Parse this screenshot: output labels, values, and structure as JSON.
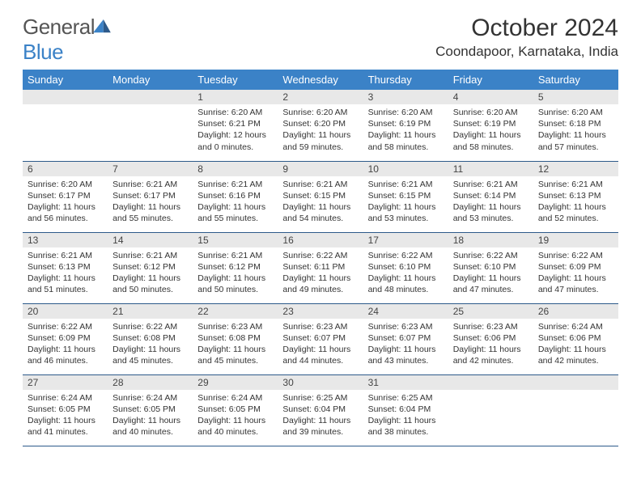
{
  "logo": {
    "text1": "General",
    "text2": "Blue"
  },
  "title": "October 2024",
  "location": "Coondapoor, Karnataka, India",
  "colors": {
    "header_bg": "#3b82c7",
    "header_text": "#ffffff",
    "daynum_bg": "#e8e8e8",
    "border": "#2d5a8a",
    "body_text": "#333333"
  },
  "weekdays": [
    "Sunday",
    "Monday",
    "Tuesday",
    "Wednesday",
    "Thursday",
    "Friday",
    "Saturday"
  ],
  "weeks": [
    [
      null,
      null,
      {
        "n": "1",
        "sr": "6:20 AM",
        "ss": "6:21 PM",
        "dl": "12 hours and 0 minutes."
      },
      {
        "n": "2",
        "sr": "6:20 AM",
        "ss": "6:20 PM",
        "dl": "11 hours and 59 minutes."
      },
      {
        "n": "3",
        "sr": "6:20 AM",
        "ss": "6:19 PM",
        "dl": "11 hours and 58 minutes."
      },
      {
        "n": "4",
        "sr": "6:20 AM",
        "ss": "6:19 PM",
        "dl": "11 hours and 58 minutes."
      },
      {
        "n": "5",
        "sr": "6:20 AM",
        "ss": "6:18 PM",
        "dl": "11 hours and 57 minutes."
      }
    ],
    [
      {
        "n": "6",
        "sr": "6:20 AM",
        "ss": "6:17 PM",
        "dl": "11 hours and 56 minutes."
      },
      {
        "n": "7",
        "sr": "6:21 AM",
        "ss": "6:17 PM",
        "dl": "11 hours and 55 minutes."
      },
      {
        "n": "8",
        "sr": "6:21 AM",
        "ss": "6:16 PM",
        "dl": "11 hours and 55 minutes."
      },
      {
        "n": "9",
        "sr": "6:21 AM",
        "ss": "6:15 PM",
        "dl": "11 hours and 54 minutes."
      },
      {
        "n": "10",
        "sr": "6:21 AM",
        "ss": "6:15 PM",
        "dl": "11 hours and 53 minutes."
      },
      {
        "n": "11",
        "sr": "6:21 AM",
        "ss": "6:14 PM",
        "dl": "11 hours and 53 minutes."
      },
      {
        "n": "12",
        "sr": "6:21 AM",
        "ss": "6:13 PM",
        "dl": "11 hours and 52 minutes."
      }
    ],
    [
      {
        "n": "13",
        "sr": "6:21 AM",
        "ss": "6:13 PM",
        "dl": "11 hours and 51 minutes."
      },
      {
        "n": "14",
        "sr": "6:21 AM",
        "ss": "6:12 PM",
        "dl": "11 hours and 50 minutes."
      },
      {
        "n": "15",
        "sr": "6:21 AM",
        "ss": "6:12 PM",
        "dl": "11 hours and 50 minutes."
      },
      {
        "n": "16",
        "sr": "6:22 AM",
        "ss": "6:11 PM",
        "dl": "11 hours and 49 minutes."
      },
      {
        "n": "17",
        "sr": "6:22 AM",
        "ss": "6:10 PM",
        "dl": "11 hours and 48 minutes."
      },
      {
        "n": "18",
        "sr": "6:22 AM",
        "ss": "6:10 PM",
        "dl": "11 hours and 47 minutes."
      },
      {
        "n": "19",
        "sr": "6:22 AM",
        "ss": "6:09 PM",
        "dl": "11 hours and 47 minutes."
      }
    ],
    [
      {
        "n": "20",
        "sr": "6:22 AM",
        "ss": "6:09 PM",
        "dl": "11 hours and 46 minutes."
      },
      {
        "n": "21",
        "sr": "6:22 AM",
        "ss": "6:08 PM",
        "dl": "11 hours and 45 minutes."
      },
      {
        "n": "22",
        "sr": "6:23 AM",
        "ss": "6:08 PM",
        "dl": "11 hours and 45 minutes."
      },
      {
        "n": "23",
        "sr": "6:23 AM",
        "ss": "6:07 PM",
        "dl": "11 hours and 44 minutes."
      },
      {
        "n": "24",
        "sr": "6:23 AM",
        "ss": "6:07 PM",
        "dl": "11 hours and 43 minutes."
      },
      {
        "n": "25",
        "sr": "6:23 AM",
        "ss": "6:06 PM",
        "dl": "11 hours and 42 minutes."
      },
      {
        "n": "26",
        "sr": "6:24 AM",
        "ss": "6:06 PM",
        "dl": "11 hours and 42 minutes."
      }
    ],
    [
      {
        "n": "27",
        "sr": "6:24 AM",
        "ss": "6:05 PM",
        "dl": "11 hours and 41 minutes."
      },
      {
        "n": "28",
        "sr": "6:24 AM",
        "ss": "6:05 PM",
        "dl": "11 hours and 40 minutes."
      },
      {
        "n": "29",
        "sr": "6:24 AM",
        "ss": "6:05 PM",
        "dl": "11 hours and 40 minutes."
      },
      {
        "n": "30",
        "sr": "6:25 AM",
        "ss": "6:04 PM",
        "dl": "11 hours and 39 minutes."
      },
      {
        "n": "31",
        "sr": "6:25 AM",
        "ss": "6:04 PM",
        "dl": "11 hours and 38 minutes."
      },
      null,
      null
    ]
  ],
  "labels": {
    "sunrise": "Sunrise:",
    "sunset": "Sunset:",
    "daylight": "Daylight:"
  }
}
